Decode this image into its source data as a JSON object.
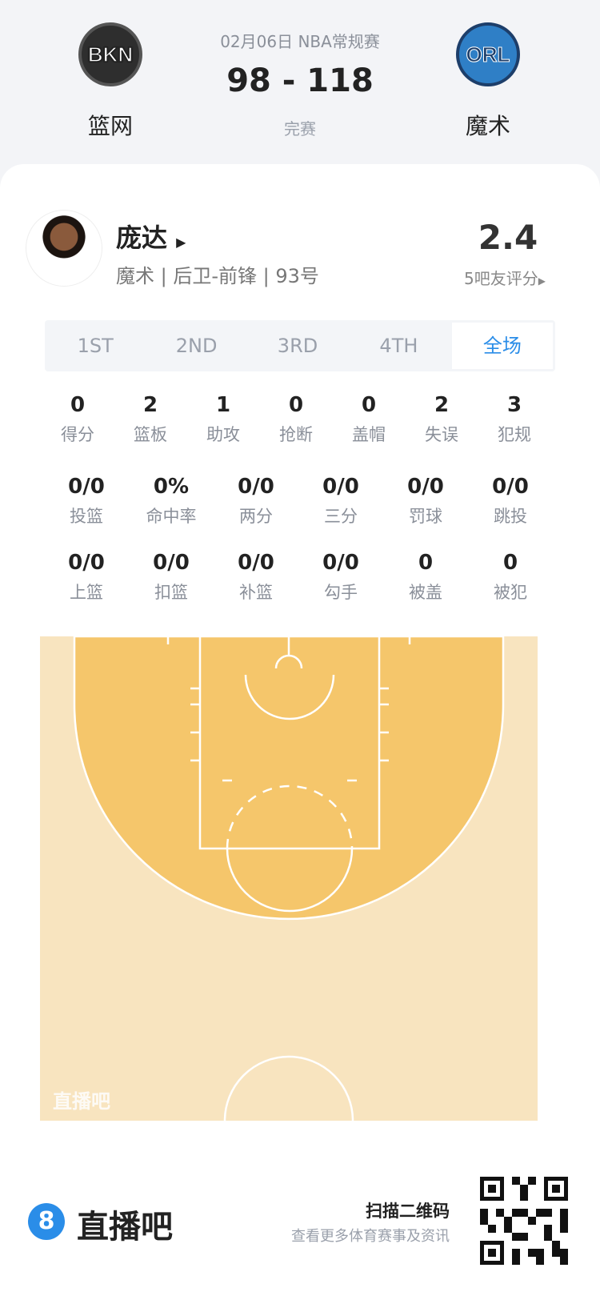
{
  "header": {
    "date_league": "02月06日 NBA常规赛",
    "score": "98 - 118",
    "status": "完赛",
    "home": {
      "abbr": "BKN",
      "name": "篮网"
    },
    "away": {
      "abbr": "ORL",
      "name": "魔术"
    }
  },
  "player": {
    "name": "庞达",
    "info": "魔术 | 后卫-前锋 | 93号",
    "rating": "2.4",
    "rating_label": "5吧友评分"
  },
  "tabs": [
    {
      "label": "1ST"
    },
    {
      "label": "2ND"
    },
    {
      "label": "3RD"
    },
    {
      "label": "4TH"
    },
    {
      "label": "全场",
      "active": true
    }
  ],
  "stats_row1": [
    {
      "v": "0",
      "l": "得分"
    },
    {
      "v": "2",
      "l": "篮板"
    },
    {
      "v": "1",
      "l": "助攻"
    },
    {
      "v": "0",
      "l": "抢断"
    },
    {
      "v": "0",
      "l": "盖帽"
    },
    {
      "v": "2",
      "l": "失误"
    },
    {
      "v": "3",
      "l": "犯规"
    }
  ],
  "stats_row2": [
    {
      "v": "0/0",
      "l": "投篮"
    },
    {
      "v": "0%",
      "l": "命中率"
    },
    {
      "v": "0/0",
      "l": "两分"
    },
    {
      "v": "0/0",
      "l": "三分"
    },
    {
      "v": "0/0",
      "l": "罚球"
    },
    {
      "v": "0/0",
      "l": "跳投"
    }
  ],
  "stats_row3": [
    {
      "v": "0/0",
      "l": "上篮"
    },
    {
      "v": "0/0",
      "l": "扣篮"
    },
    {
      "v": "0/0",
      "l": "补篮"
    },
    {
      "v": "0/0",
      "l": "勾手"
    },
    {
      "v": "0",
      "l": "被盖"
    },
    {
      "v": "0",
      "l": "被犯"
    }
  ],
  "court": {
    "watermark": "直播吧",
    "outer_color": "#f8e4bf",
    "three_pt_color": "#f5c66b"
  },
  "footer": {
    "brand_icon": "8",
    "brand": "直播吧",
    "scan": "扫描二维码",
    "sub": "查看更多体育赛事及资讯"
  },
  "colors": {
    "accent": "#2a8de8"
  }
}
